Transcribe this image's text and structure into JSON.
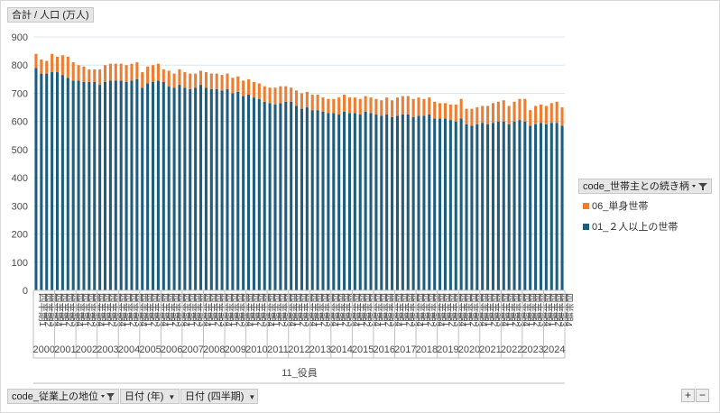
{
  "value_field": "合計 / 人口 (万人)",
  "axis_field_group": "11_役員",
  "legend_field": "code_世帯主との続き柄",
  "filters": [
    {
      "label": "code_従業上の地位",
      "has_filter": true
    },
    {
      "label": "日付 (年)",
      "has_filter": false
    },
    {
      "label": "日付 (四半期)",
      "has_filter": false
    }
  ],
  "zoom": {
    "plus": "+",
    "minus": "−"
  },
  "icons": {
    "dropdown": "dropdown-arrow-icon",
    "filter": "filter-icon"
  },
  "colors": {
    "series_household": "#1f5d7f",
    "series_single": "#ed7d31",
    "grid": "#d9e6f2",
    "axis_text": "#4a4a4a"
  },
  "chart_data": {
    "type": "bar",
    "stacked": true,
    "title": "",
    "ylabel": "合計 / 人口 (万人)",
    "xlabel": "11_役員",
    "ylim": [
      0,
      900
    ],
    "yticks": [
      0,
      100,
      200,
      300,
      400,
      500,
      600,
      700,
      800,
      900
    ],
    "quarter_labels": [
      "四半期1",
      "四半期2",
      "四半期3",
      "四半期4"
    ],
    "years": [
      "2000",
      "2001",
      "2002",
      "2003",
      "2004",
      "2005",
      "2006",
      "2007",
      "2008",
      "2009",
      "2010",
      "2011",
      "2012",
      "2013",
      "2014",
      "2015",
      "2016",
      "2017",
      "2018",
      "2019",
      "2020",
      "2021",
      "2022",
      "2023",
      "2024"
    ],
    "series": [
      {
        "name": "01_２人以上の世帯",
        "values": [
          790,
          770,
          770,
          775,
          775,
          765,
          755,
          745,
          745,
          740,
          740,
          740,
          730,
          740,
          745,
          745,
          745,
          740,
          745,
          750,
          720,
          735,
          740,
          745,
          740,
          725,
          720,
          730,
          720,
          715,
          720,
          730,
          720,
          715,
          715,
          710,
          715,
          700,
          705,
          690,
          695,
          685,
          680,
          670,
          665,
          660,
          665,
          670,
          670,
          655,
          645,
          650,
          640,
          640,
          635,
          630,
          630,
          625,
          635,
          630,
          630,
          625,
          635,
          630,
          625,
          620,
          625,
          615,
          620,
          625,
          625,
          615,
          620,
          620,
          625,
          610,
          610,
          610,
          605,
          600,
          610,
          590,
          585,
          590,
          595,
          590,
          595,
          600,
          600,
          590,
          600,
          605,
          600,
          585,
          590,
          595,
          590,
          595,
          595,
          585
        ]
      },
      {
        "name": "06_単身世帯",
        "values": [
          50,
          50,
          45,
          65,
          55,
          70,
          75,
          65,
          55,
          55,
          45,
          45,
          55,
          60,
          60,
          60,
          60,
          60,
          60,
          60,
          55,
          60,
          60,
          60,
          45,
          55,
          50,
          55,
          55,
          55,
          50,
          50,
          55,
          55,
          55,
          55,
          55,
          55,
          55,
          55,
          55,
          55,
          55,
          55,
          55,
          60,
          60,
          55,
          50,
          55,
          55,
          55,
          55,
          55,
          50,
          50,
          50,
          60,
          60,
          55,
          55,
          55,
          55,
          55,
          55,
          55,
          60,
          60,
          65,
          65,
          65,
          65,
          65,
          60,
          60,
          60,
          55,
          55,
          55,
          60,
          70,
          55,
          60,
          60,
          60,
          65,
          70,
          70,
          75,
          65,
          70,
          75,
          80,
          55,
          65,
          65,
          65,
          70,
          75,
          65
        ]
      }
    ]
  }
}
